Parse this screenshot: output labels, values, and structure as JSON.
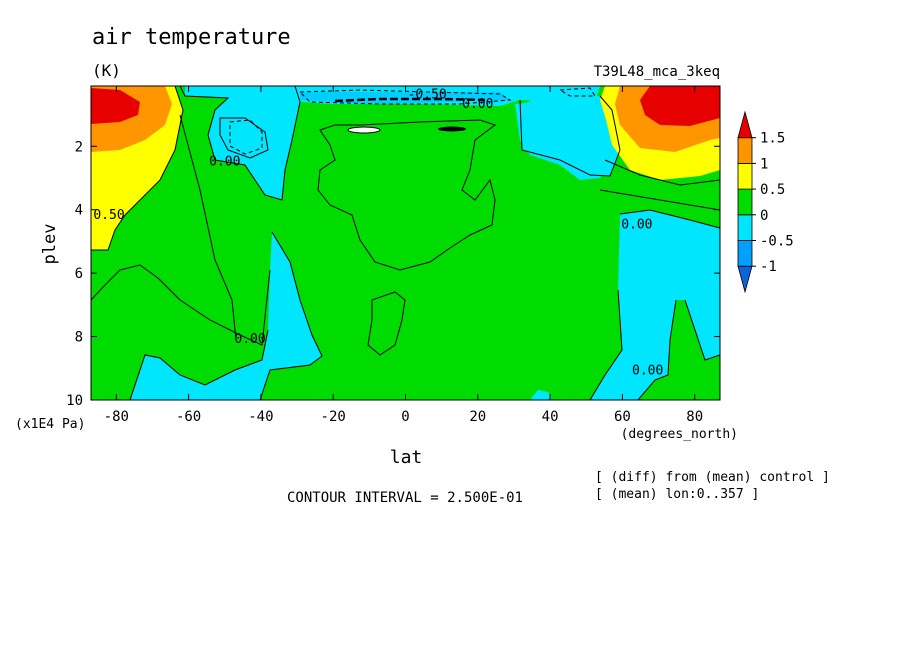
{
  "chart_data": {
    "type": "heatmap",
    "title": "air temperature",
    "units": "(K)",
    "run_label": "T39L48_mca_3keq",
    "xlabel": "lat",
    "x_units": "(degrees_north)",
    "ylabel": "plev",
    "y_units": "(x1E4 Pa)",
    "xlim": [
      -87,
      87
    ],
    "ylim": [
      10,
      0.1
    ],
    "x_ticks": [
      "-80",
      "-60",
      "-40",
      "-20",
      "0",
      "20",
      "40",
      "60",
      "80"
    ],
    "x_tick_values": [
      -80,
      -60,
      -40,
      -20,
      0,
      20,
      40,
      60,
      80
    ],
    "y_ticks": [
      "2",
      "4",
      "6",
      "8",
      "10"
    ],
    "y_tick_values": [
      2,
      4,
      6,
      8,
      10
    ],
    "colorbar": {
      "labels": [
        "1.5",
        "1",
        "0.5",
        "0",
        "-0.5",
        "-1"
      ],
      "label_values": [
        1.5,
        1,
        0.5,
        0,
        -0.5,
        -1
      ],
      "colors": [
        "#0a64dc",
        "#00a0ff",
        "#00e6ff",
        "#00dc00",
        "#ffff00",
        "#ff9600",
        "#e60000"
      ]
    },
    "contour_labels": [
      {
        "text": "-0.50",
        "lat": 6,
        "plev": 0.5
      },
      {
        "text": "0.00",
        "lat": 20,
        "plev": 0.8
      },
      {
        "text": "0.00",
        "lat": -50,
        "plev": 2.6
      },
      {
        "text": "0.50",
        "lat": -82,
        "plev": 4.3
      },
      {
        "text": "0.00",
        "lat": -43,
        "plev": 8.2
      },
      {
        "text": "0.00",
        "lat": 64,
        "plev": 4.6
      },
      {
        "text": "0.00",
        "lat": 67,
        "plev": 9.2
      }
    ],
    "contour_interval": "CONTOUR INTERVAL = 2.500E-01",
    "notes": [
      "[ (diff) from (mean) control ]",
      "[ (mean) lon:0..357 ]"
    ]
  }
}
